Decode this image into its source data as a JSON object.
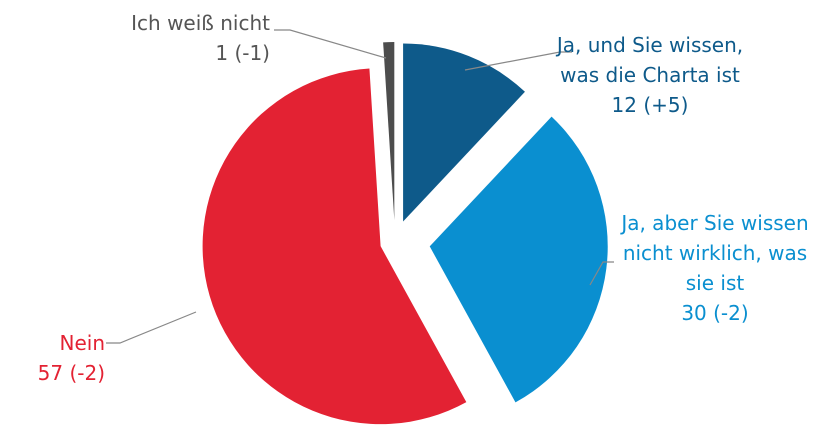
{
  "chart_data": {
    "type": "pie",
    "categories": [
      "Ja, und Sie wissen,\nwas die Charta ist",
      "Ja, aber Sie wissen\nnicht wirklich, was\nsie ist",
      "Nein",
      "Ich weiß nicht"
    ],
    "values": [
      12,
      30,
      57,
      1
    ],
    "value_labels": [
      "12 (+5)",
      "30 (-2)",
      "57 (-2)",
      "1 (-1)"
    ],
    "colors": [
      "#0e5a8a",
      "#0a8fd0",
      "#e32233",
      "#4d4d4d"
    ]
  }
}
